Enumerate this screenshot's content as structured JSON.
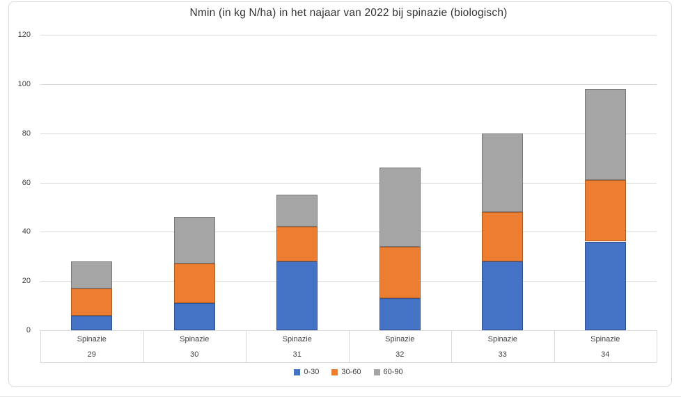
{
  "title": "Nmin (in kg N/ha) in het najaar van 2022 bij spinazie (biologisch)",
  "colors": {
    "series_blue": "#4472C4",
    "series_orange": "#ED7D31",
    "series_gray": "#A5A5A5",
    "gridline": "#D9D9D9",
    "axis_text": "#404040",
    "title_text": "#333333",
    "frame_border": "#D9D9D9"
  },
  "chart_data": {
    "type": "bar",
    "stacked": true,
    "title": "Nmin (in kg N/ha) in het najaar van 2022 bij spinazie (biologisch)",
    "categories_top": [
      "Spinazie",
      "Spinazie",
      "Spinazie",
      "Spinazie",
      "Spinazie",
      "Spinazie"
    ],
    "categories_bottom": [
      "29",
      "30",
      "31",
      "32",
      "33",
      "34"
    ],
    "series": [
      {
        "name": "0-30",
        "color": "#4472C4",
        "values": [
          6,
          11,
          28,
          13,
          28,
          36
        ]
      },
      {
        "name": "30-60",
        "color": "#ED7D31",
        "values": [
          11,
          16,
          14,
          21,
          20,
          25
        ]
      },
      {
        "name": "60-90",
        "color": "#A5A5A5",
        "values": [
          11,
          19,
          13,
          32,
          32,
          37
        ]
      }
    ],
    "totals": [
      28,
      46,
      55,
      66,
      80,
      98
    ],
    "xlabel": "",
    "ylabel": "",
    "y_ticks": [
      0,
      20,
      40,
      60,
      80,
      100,
      120
    ],
    "ylim": [
      0,
      120
    ],
    "grid": true,
    "legend_position": "bottom"
  }
}
